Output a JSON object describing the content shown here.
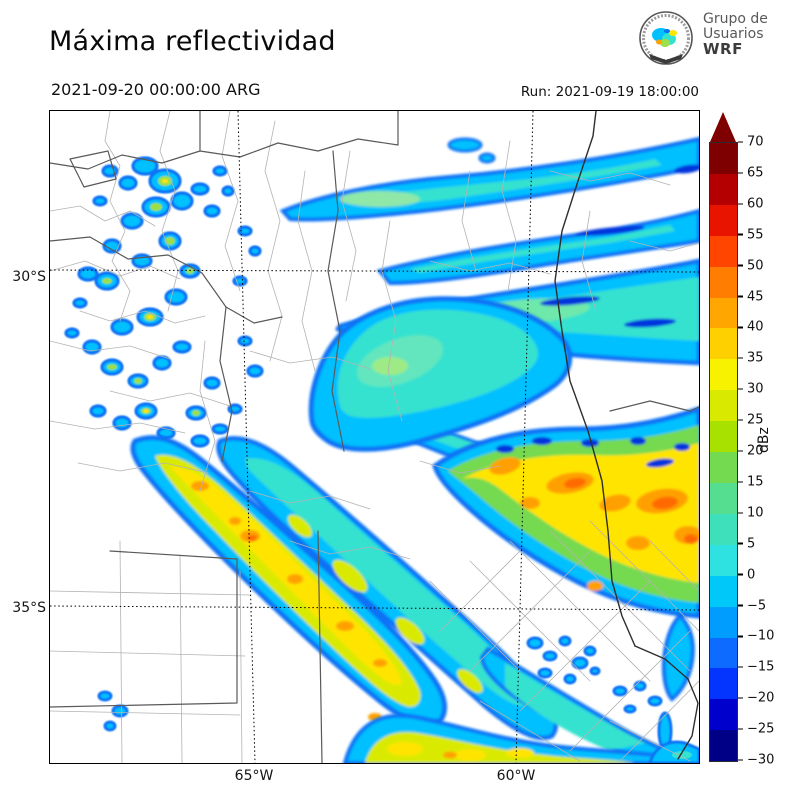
{
  "header": {
    "title": "Máxima reflectividad",
    "valid_time": "2021-09-20 00:00:00 ARG",
    "run_label": "Run: 2021-09-19 18:00:00",
    "logo_text": {
      "line1": "Grupo de",
      "line2": "Usuarios",
      "line3": "WRF"
    }
  },
  "map": {
    "lat_labels": [
      "30°S",
      "35°S"
    ],
    "lon_labels": [
      "65°W",
      "60°W"
    ]
  },
  "colorbar": {
    "unit_label": "dBz",
    "tick_values": [
      70,
      65,
      60,
      55,
      50,
      45,
      40,
      35,
      30,
      25,
      20,
      15,
      10,
      5,
      0,
      -5,
      -10,
      -15,
      -20,
      -25,
      -30
    ],
    "segment_colors_top_to_bottom": [
      "#7f0000",
      "#b40000",
      "#e81400",
      "#ff4500",
      "#ff7d00",
      "#ffa600",
      "#ffd000",
      "#f6f200",
      "#d9ea00",
      "#a8e000",
      "#74da50",
      "#55dd90",
      "#3ee0bc",
      "#2de2e0",
      "#00c8f8",
      "#009dff",
      "#0d6bff",
      "#0435ff",
      "#0000cd",
      "#000087"
    ],
    "arrow_color": "#7f0000"
  },
  "chart_data": {
    "type": "heatmap",
    "title": "Máxima reflectividad",
    "units": "dBz",
    "value_range": [
      -30,
      70
    ],
    "contour_interval": 5,
    "x_ticks": [
      "65°W",
      "60°W"
    ],
    "y_ticks": [
      "30°S",
      "35°S"
    ],
    "legend_position": "right",
    "palette_top_to_bottom_dbz_70_to_-30": [
      "#7f0000",
      "#b40000",
      "#e81400",
      "#ff4500",
      "#ff7d00",
      "#ffa600",
      "#ffd000",
      "#f6f200",
      "#d9ea00",
      "#a8e000",
      "#74da50",
      "#55dd90",
      "#3ee0bc",
      "#2de2e0",
      "#00c8f8",
      "#009dff",
      "#0d6bff",
      "#0435ff",
      "#0000cd",
      "#000087"
    ]
  }
}
